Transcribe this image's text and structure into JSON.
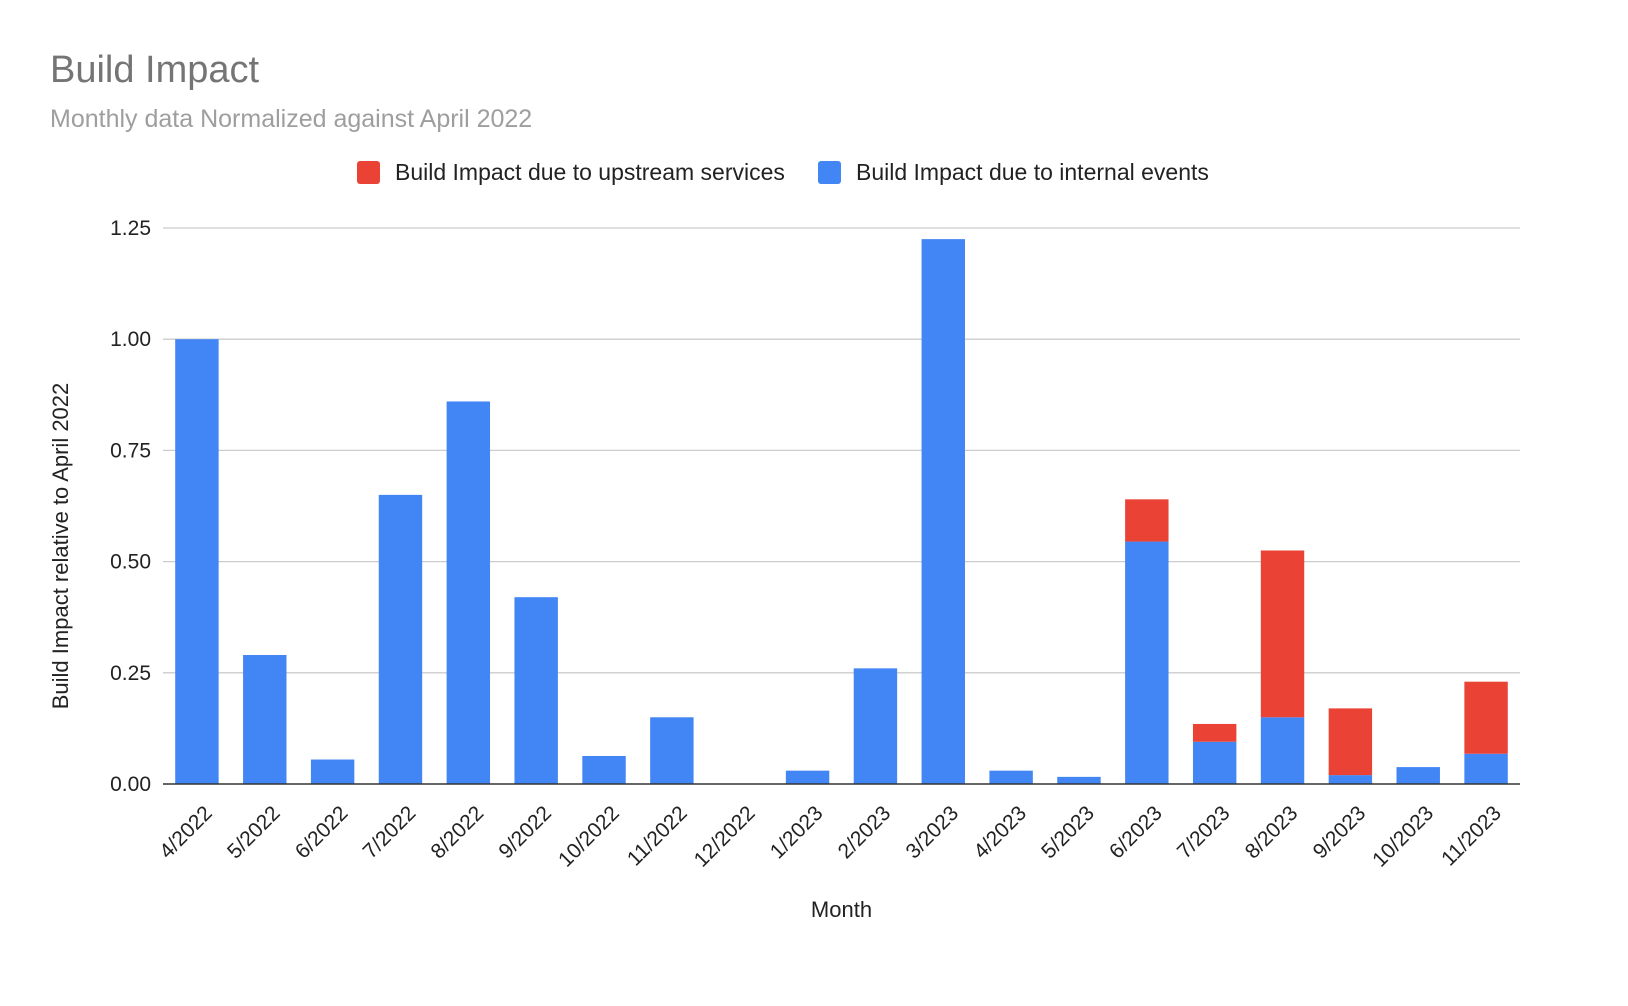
{
  "chart_data": {
    "type": "bar",
    "stacked": true,
    "title": "Build Impact",
    "subtitle": "Monthly data Normalized against April 2022",
    "xlabel": "Month",
    "ylabel": "Build Impact relative to April 2022",
    "ylim": [
      0,
      1.25
    ],
    "yticks": [
      "0.00",
      "0.25",
      "0.50",
      "0.75",
      "1.00",
      "1.25"
    ],
    "grid": true,
    "legend_position": "top",
    "categories": [
      "4/2022",
      "5/2022",
      "6/2022",
      "7/2022",
      "8/2022",
      "9/2022",
      "10/2022",
      "11/2022",
      "12/2022",
      "1/2023",
      "2/2023",
      "3/2023",
      "4/2023",
      "5/2023",
      "6/2023",
      "7/2023",
      "8/2023",
      "9/2023",
      "10/2023",
      "11/2023"
    ],
    "series": [
      {
        "name": "Build Impact due to internal events",
        "color": "#4285f4",
        "values": [
          1.0,
          0.29,
          0.055,
          0.65,
          0.86,
          0.42,
          0.063,
          0.15,
          0.0,
          0.03,
          0.26,
          1.225,
          0.03,
          0.016,
          0.545,
          0.095,
          0.15,
          0.02,
          0.038,
          0.068
        ]
      },
      {
        "name": "Build Impact due to upstream services",
        "color": "#ea4335",
        "values": [
          0,
          0,
          0,
          0,
          0,
          0,
          0,
          0,
          0,
          0,
          0,
          0,
          0,
          0,
          0.095,
          0.04,
          0.375,
          0.15,
          0,
          0.162
        ]
      }
    ],
    "legend_order": [
      1,
      0
    ]
  }
}
